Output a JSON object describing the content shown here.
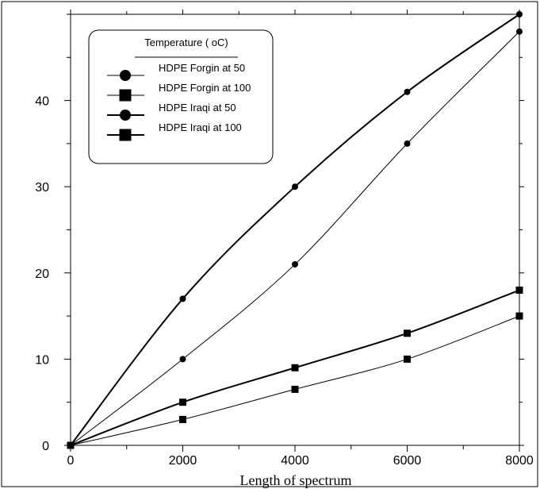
{
  "chart_data": {
    "type": "line",
    "title": "",
    "xlabel": "Length of spectrum",
    "ylabel": "",
    "xlim": [
      0,
      8000
    ],
    "ylim": [
      0,
      50
    ],
    "x_ticks": [
      0,
      2000,
      4000,
      6000,
      8000
    ],
    "y_ticks": [
      0,
      10,
      20,
      30,
      40
    ],
    "grid": false,
    "legend": {
      "title": "Temperature  ( oC)",
      "placement": "top-left"
    },
    "x": [
      0,
      2000,
      4000,
      6000,
      8000
    ],
    "series": [
      {
        "name": "HDPE Forgin at 50",
        "marker": "circle",
        "line": "thin",
        "values": [
          0,
          10,
          21,
          35,
          48
        ]
      },
      {
        "name": "HDPE Forgin at 100",
        "marker": "square",
        "line": "thin",
        "values": [
          0,
          3,
          6.5,
          10,
          15
        ]
      },
      {
        "name": "HDPE Iraqi at 50",
        "marker": "circle",
        "line": "thick",
        "values": [
          0,
          17,
          30,
          41,
          50
        ]
      },
      {
        "name": "HDPE Iraqi at 100",
        "marker": "square",
        "line": "thick",
        "values": [
          0,
          5,
          9,
          13,
          18
        ]
      }
    ]
  }
}
